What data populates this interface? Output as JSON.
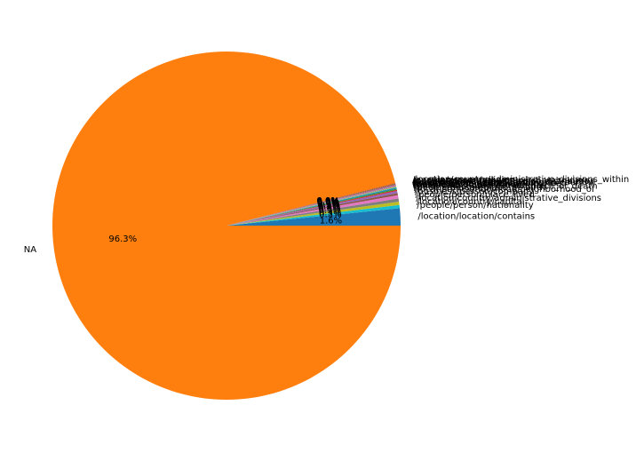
{
  "chart_data": {
    "type": "pie",
    "title": "",
    "start_angle_deg": 0,
    "direction": "counterclockwise",
    "slices": [
      {
        "label": "/location/location/contains",
        "value": 1.6,
        "pct_label": "1.6%",
        "color": "#1f77b4"
      },
      {
        "label": "/people/person/nationality",
        "value": 0.3,
        "pct_label": "0.3%",
        "color": "#17becf"
      },
      {
        "label": "/location/country/capital",
        "value": 0.3,
        "pct_label": "0.3%",
        "color": "#bcbd22"
      },
      {
        "label": "/location/country/administrative_divisions",
        "value": 0.3,
        "pct_label": "0.3%",
        "color": "#7f7f7f"
      },
      {
        "label": "/people/person/place_lived",
        "value": 0.3,
        "pct_label": "0.3%",
        "color": "#e377c2"
      },
      {
        "label": "/business/person/company",
        "value": 0.2,
        "pct_label": "0.2%",
        "color": "#8c564b"
      },
      {
        "label": "/location/neighborhood/neighborhood_of",
        "value": 0.2,
        "pct_label": "0.2%",
        "color": "#9467bd"
      },
      {
        "label": "/people/person/place_of_birth",
        "value": 0.1,
        "pct_label": "0.1%",
        "color": "#d62728"
      },
      {
        "label": "/people/deceased_person/place_of_death",
        "value": 0.1,
        "pct_label": "0.1%",
        "color": "#2ca02c"
      },
      {
        "label": "/business/company/founders",
        "value": 0.1,
        "pct_label": "0.1%",
        "color": "#1f77b4"
      },
      {
        "label": "/people/person/children",
        "value": 0.05,
        "pct_label": "0.0%",
        "color": "#17becf"
      },
      {
        "label": "/business/company/place_founded",
        "value": 0.05,
        "pct_label": "0.0%",
        "color": "#bcbd22"
      },
      {
        "label": "/sports/sports_team/location",
        "value": 0.05,
        "pct_label": "0.0%",
        "color": "#7f7f7f"
      },
      {
        "label": "/location/administrative_division/country",
        "value": 0.05,
        "pct_label": "0.0%",
        "color": "#e377c2"
      },
      {
        "label": "/people/person/ethnicity",
        "value": 0.05,
        "pct_label": "0.0%",
        "color": "#8c564b"
      },
      {
        "label": "/people/ethnicity/geographic_distribution",
        "value": 0.05,
        "pct_label": "0.0%",
        "color": "#9467bd"
      },
      {
        "label": "/business/company/major_shareholders",
        "value": 0.05,
        "pct_label": "0.0%",
        "color": "#d62728"
      },
      {
        "label": "/people/person/religion",
        "value": 0.05,
        "pct_label": "0.0%",
        "color": "#2ca02c"
      },
      {
        "label": "/location/country/administrative_divisions_within",
        "value": 0.05,
        "pct_label": "0.0%",
        "color": "#d62728"
      },
      {
        "label": "NA",
        "value": 96.3,
        "pct_label": "96.3%",
        "color": "#ff7f0e"
      }
    ]
  }
}
